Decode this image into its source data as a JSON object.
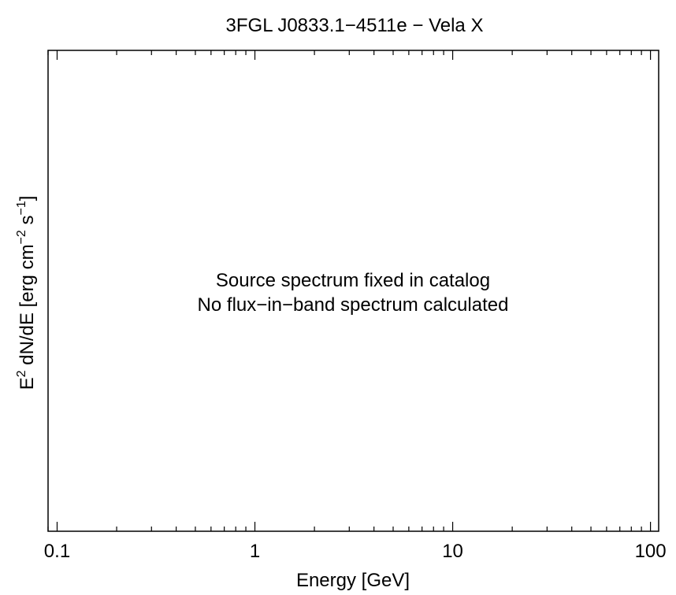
{
  "chart_data": {
    "type": "scatter",
    "title": "3FGL J0833.1−4511e − Vela X",
    "xlabel": "Energy [GeV]",
    "ylabel": {
      "prefix": "E",
      "prefix_sup": "2",
      "middle": " dN/dE [erg cm",
      "unit1_sup": "−2",
      "middle2": " s",
      "unit2_sup": "−1",
      "suffix": "]"
    },
    "x_scale": "log",
    "xlim": [
      0.09,
      110
    ],
    "ylim": null,
    "x_ticks": [
      {
        "value": 0.1,
        "label": "0.1"
      },
      {
        "value": 1,
        "label": "1"
      },
      {
        "value": 10,
        "label": "10"
      },
      {
        "value": 100,
        "label": "100"
      }
    ],
    "series": [],
    "grid": false,
    "annotations": [
      "Source spectrum fixed in catalog",
      "No flux−in−band spectrum calculated"
    ]
  }
}
